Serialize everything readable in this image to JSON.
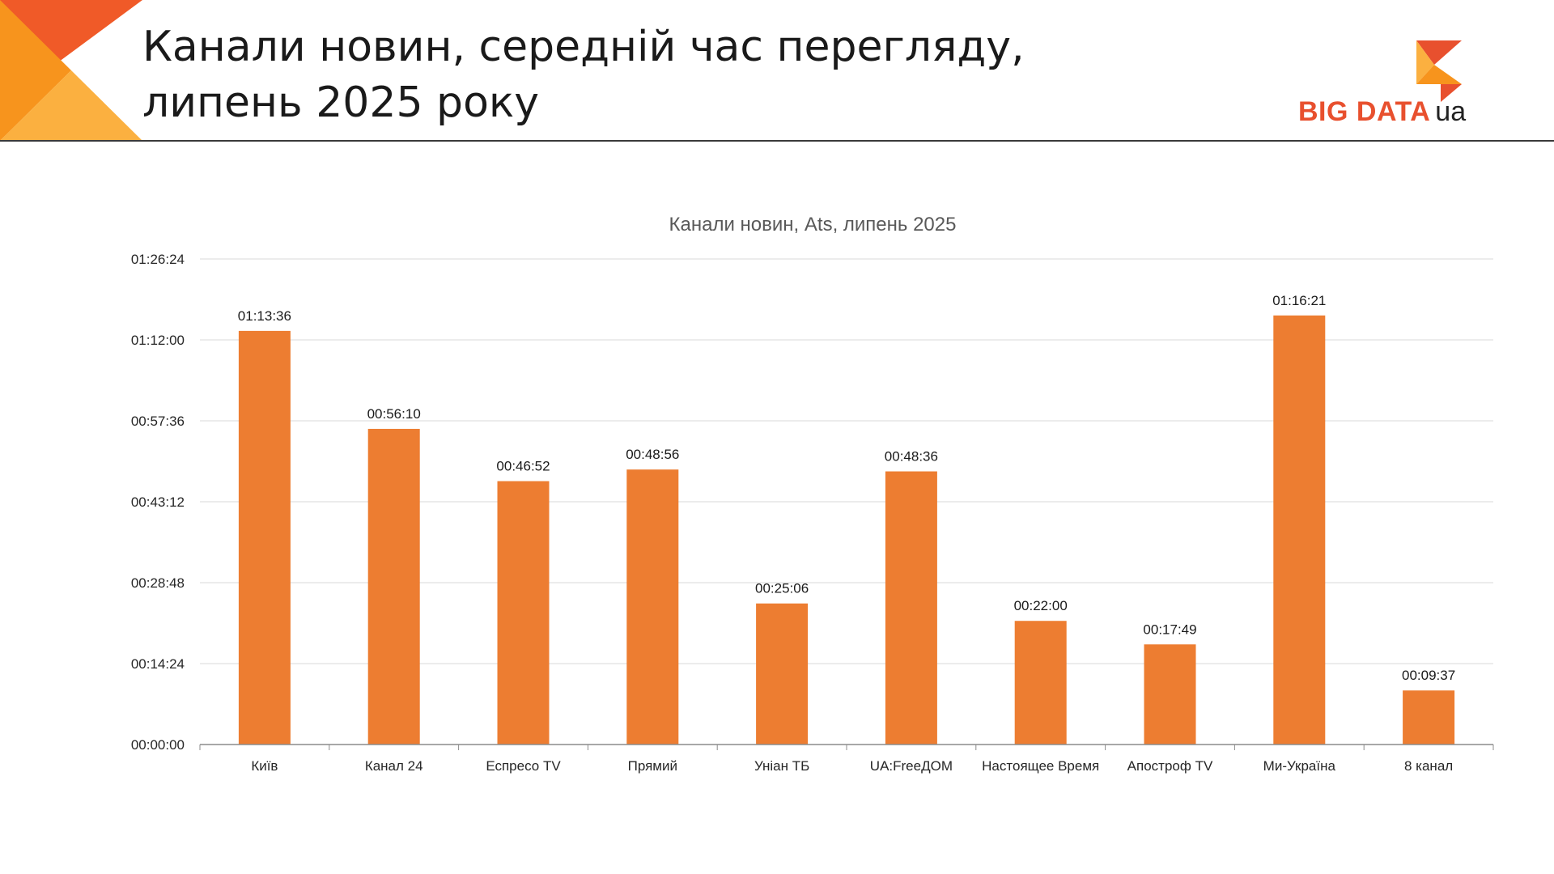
{
  "slide": {
    "title_lines": [
      "Канали новин, середній час перегляду,",
      "липень 2025 року"
    ]
  },
  "logo": {
    "name": "BIG DATA",
    "suffix": "ua",
    "colors": {
      "red": "#e8502e",
      "orange": "#f7941d",
      "yellow": "#fbb040",
      "text": "#222222"
    }
  },
  "colors": {
    "bar": "#ed7d31",
    "corner_red": "#f05a28",
    "corner_orange": "#f7941d",
    "corner_yellow": "#fbb040",
    "grid": "#d9d9d9",
    "axis": "#8c8c8c"
  },
  "chart_data": {
    "type": "bar",
    "title": "Канали новин, Ats, липень 2025",
    "xlabel": "",
    "ylabel": "",
    "unit": "hh:mm:ss",
    "categories": [
      "Київ",
      "Канал 24",
      "Еспресо TV",
      "Прямий",
      "Уніан ТБ",
      "UA:FreeДОМ",
      "Настоящее Время",
      "Апостроф TV",
      "Ми-Україна",
      "8 канал"
    ],
    "values": [
      "01:13:36",
      "00:56:10",
      "00:46:52",
      "00:48:56",
      "00:25:06",
      "00:48:36",
      "00:22:00",
      "00:17:49",
      "01:16:21",
      "00:09:37"
    ],
    "ylim": [
      "00:00:00",
      "01:26:24"
    ],
    "yticks": [
      "00:00:00",
      "00:14:24",
      "00:28:48",
      "00:43:12",
      "00:57:36",
      "01:12:00",
      "01:26:24"
    ],
    "data_labels": true,
    "grid": true,
    "legend": "none"
  }
}
